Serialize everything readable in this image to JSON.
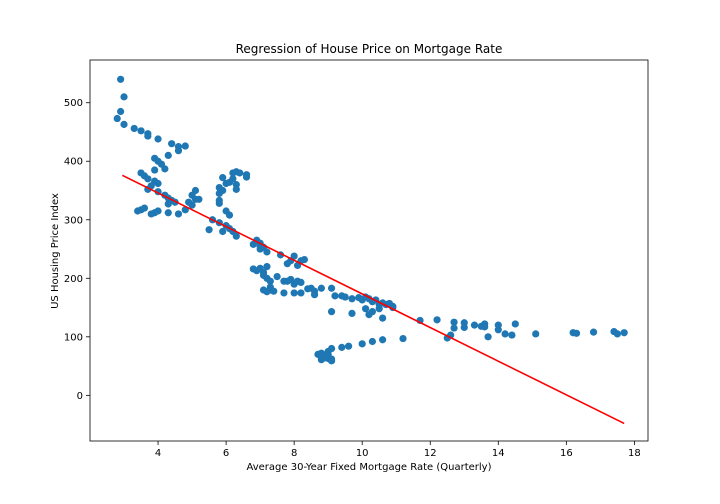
{
  "chart_data": {
    "type": "scatter",
    "title": "Regression of House Price on Mortgage Rate",
    "xlabel": "Average 30-Year Fixed Mortgage Rate (Quarterly)",
    "ylabel": "US Housing Price Index",
    "xlim": [
      2.0,
      18.4
    ],
    "ylim": [
      -78,
      573
    ],
    "xticks": [
      4,
      6,
      8,
      10,
      12,
      14,
      16,
      18
    ],
    "yticks": [
      0,
      100,
      200,
      300,
      400,
      500
    ],
    "grid": false,
    "colors": {
      "points": "#1f77b4",
      "regression_line": "#ff0000",
      "axes": "#000000"
    },
    "series": [
      {
        "type": "scatter",
        "points": [
          [
            2.9,
            540
          ],
          [
            2.9,
            485
          ],
          [
            3.0,
            510
          ],
          [
            2.8,
            473
          ],
          [
            3.0,
            463
          ],
          [
            3.3,
            456
          ],
          [
            3.5,
            452
          ],
          [
            3.7,
            447
          ],
          [
            3.7,
            443
          ],
          [
            4.0,
            438
          ],
          [
            4.4,
            430
          ],
          [
            4.6,
            425
          ],
          [
            4.8,
            426
          ],
          [
            4.6,
            418
          ],
          [
            4.3,
            410
          ],
          [
            3.9,
            405
          ],
          [
            4.0,
            400
          ],
          [
            4.1,
            395
          ],
          [
            4.2,
            387
          ],
          [
            3.9,
            385
          ],
          [
            3.5,
            380
          ],
          [
            3.6,
            375
          ],
          [
            3.7,
            370
          ],
          [
            3.9,
            366
          ],
          [
            4.0,
            362
          ],
          [
            3.8,
            358
          ],
          [
            3.7,
            352
          ],
          [
            4.0,
            348
          ],
          [
            4.2,
            342
          ],
          [
            4.3,
            337
          ],
          [
            4.4,
            333
          ],
          [
            4.5,
            330
          ],
          [
            4.3,
            327
          ],
          [
            4.9,
            330
          ],
          [
            5.0,
            325
          ],
          [
            4.8,
            317
          ],
          [
            5.1,
            335
          ],
          [
            5.0,
            342
          ],
          [
            5.1,
            350
          ],
          [
            5.2,
            335
          ],
          [
            3.4,
            315
          ],
          [
            3.5,
            317
          ],
          [
            3.6,
            320
          ],
          [
            3.8,
            310
          ],
          [
            3.9,
            312
          ],
          [
            4.0,
            315
          ],
          [
            4.3,
            312
          ],
          [
            4.6,
            310
          ],
          [
            5.5,
            283
          ],
          [
            5.6,
            300
          ],
          [
            5.8,
            295
          ],
          [
            5.9,
            280
          ],
          [
            6.0,
            290
          ],
          [
            6.1,
            285
          ],
          [
            6.2,
            280
          ],
          [
            6.3,
            272
          ],
          [
            6.1,
            308
          ],
          [
            6.0,
            315
          ],
          [
            5.8,
            328
          ],
          [
            5.8,
            333
          ],
          [
            5.8,
            345
          ],
          [
            5.8,
            355
          ],
          [
            5.9,
            350
          ],
          [
            5.9,
            372
          ],
          [
            6.0,
            362
          ],
          [
            6.1,
            364
          ],
          [
            6.2,
            370
          ],
          [
            6.2,
            380
          ],
          [
            6.3,
            382
          ],
          [
            6.4,
            380
          ],
          [
            6.3,
            360
          ],
          [
            6.3,
            352
          ],
          [
            6.6,
            377
          ],
          [
            6.6,
            373
          ],
          [
            6.8,
            258
          ],
          [
            6.9,
            265
          ],
          [
            7.0,
            260
          ],
          [
            7.0,
            255
          ],
          [
            7.0,
            250
          ],
          [
            7.1,
            253
          ],
          [
            7.2,
            245
          ],
          [
            6.8,
            216
          ],
          [
            6.9,
            213
          ],
          [
            7.0,
            217
          ],
          [
            7.1,
            210
          ],
          [
            7.1,
            205
          ],
          [
            7.2,
            220
          ],
          [
            7.2,
            200
          ],
          [
            7.3,
            195
          ],
          [
            7.3,
            185
          ],
          [
            7.3,
            180
          ],
          [
            7.1,
            180
          ],
          [
            7.2,
            177
          ],
          [
            7.4,
            178
          ],
          [
            7.5,
            203
          ],
          [
            7.7,
            175
          ],
          [
            7.6,
            240
          ],
          [
            7.8,
            225
          ],
          [
            7.9,
            230
          ],
          [
            8.0,
            238
          ],
          [
            8.1,
            222
          ],
          [
            8.2,
            230
          ],
          [
            8.3,
            232
          ],
          [
            7.7,
            195
          ],
          [
            7.8,
            195
          ],
          [
            7.9,
            198
          ],
          [
            8.0,
            190
          ],
          [
            8.0,
            175
          ],
          [
            8.2,
            175
          ],
          [
            8.2,
            193
          ],
          [
            8.1,
            195
          ],
          [
            8.4,
            182
          ],
          [
            8.5,
            183
          ],
          [
            8.6,
            178
          ],
          [
            8.6,
            172
          ],
          [
            8.8,
            183
          ],
          [
            9.1,
            183
          ],
          [
            9.2,
            170
          ],
          [
            9.4,
            170
          ],
          [
            9.5,
            168
          ],
          [
            9.7,
            165
          ],
          [
            9.9,
            167
          ],
          [
            10.0,
            163
          ],
          [
            10.1,
            168
          ],
          [
            10.2,
            165
          ],
          [
            10.3,
            160
          ],
          [
            10.4,
            163
          ],
          [
            10.5,
            155
          ],
          [
            10.5,
            148
          ],
          [
            10.6,
            158
          ],
          [
            10.7,
            155
          ],
          [
            10.8,
            157
          ],
          [
            10.9,
            152
          ],
          [
            10.9,
            150
          ],
          [
            10.3,
            143
          ],
          [
            10.2,
            138
          ],
          [
            10.6,
            132
          ],
          [
            10.1,
            148
          ],
          [
            9.7,
            140
          ],
          [
            9.1,
            143
          ],
          [
            8.7,
            70
          ],
          [
            8.8,
            72
          ],
          [
            8.8,
            66
          ],
          [
            8.9,
            68
          ],
          [
            8.9,
            64
          ],
          [
            9.0,
            63
          ],
          [
            9.0,
            70
          ],
          [
            9.0,
            75
          ],
          [
            9.1,
            62
          ],
          [
            9.1,
            59
          ],
          [
            8.8,
            61
          ],
          [
            9.1,
            80
          ],
          [
            9.4,
            82
          ],
          [
            9.6,
            84
          ],
          [
            10.0,
            88
          ],
          [
            10.3,
            92
          ],
          [
            10.6,
            95
          ],
          [
            11.2,
            97
          ],
          [
            11.7,
            128
          ],
          [
            12.2,
            129
          ],
          [
            12.5,
            98
          ],
          [
            12.6,
            103
          ],
          [
            12.7,
            125
          ],
          [
            12.7,
            115
          ],
          [
            13.0,
            124
          ],
          [
            13.0,
            116
          ],
          [
            13.3,
            120
          ],
          [
            13.5,
            118
          ],
          [
            13.6,
            122
          ],
          [
            13.6,
            117
          ],
          [
            13.7,
            100
          ],
          [
            14.0,
            120
          ],
          [
            14.0,
            112
          ],
          [
            14.2,
            105
          ],
          [
            14.4,
            103
          ],
          [
            14.5,
            122
          ],
          [
            15.1,
            105
          ],
          [
            16.2,
            107
          ],
          [
            16.3,
            106
          ],
          [
            16.8,
            108
          ],
          [
            17.4,
            109
          ],
          [
            17.5,
            105
          ],
          [
            17.7,
            107
          ]
        ]
      },
      {
        "type": "line",
        "points": [
          [
            2.95,
            376
          ],
          [
            17.7,
            -48
          ]
        ]
      }
    ]
  }
}
